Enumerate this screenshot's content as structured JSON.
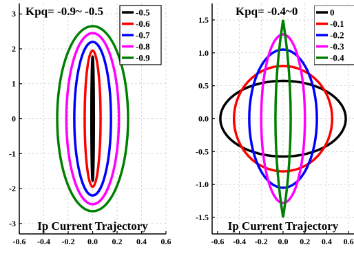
{
  "chart_data": [
    {
      "type": "line",
      "title": "Kpq= -0.9~ -0.5",
      "annotation": "Ip Current Trajectory",
      "xlim": [
        -0.6,
        0.6
      ],
      "ylim": [
        -3.3,
        3.3
      ],
      "xticks": [
        "-0.6",
        "-0.4",
        "-0.2",
        "0.0",
        "0.2",
        "0.4",
        "0.6"
      ],
      "yticks": [
        "3",
        "2",
        "1",
        "0",
        "-1",
        "-2",
        "-3"
      ],
      "grid": true,
      "legend_position": "top-right",
      "series": [
        {
          "name": "-0.5",
          "color": "#000000",
          "shape": "ellipse",
          "rx": 0.01,
          "ry": 1.78
        },
        {
          "name": "-0.6",
          "color": "#ff0000",
          "shape": "ellipse",
          "rx": 0.065,
          "ry": 1.95
        },
        {
          "name": "-0.7",
          "color": "#0000ff",
          "shape": "ellipse",
          "rx": 0.15,
          "ry": 2.2
        },
        {
          "name": "-0.8",
          "color": "#ff00ff",
          "shape": "ellipse",
          "rx": 0.215,
          "ry": 2.45
        },
        {
          "name": "-0.9",
          "color": "#008000",
          "shape": "ellipse",
          "rx": 0.29,
          "ry": 2.65
        }
      ]
    },
    {
      "type": "line",
      "title": "Kpq= -0.4~0",
      "annotation": "Ip Current Trajectory",
      "xlim": [
        -0.65,
        0.65
      ],
      "ylim": [
        -1.75,
        1.75
      ],
      "xticks": [
        "-0.6",
        "-0.4",
        "-0.2",
        "0.0",
        "0.2",
        "0.4",
        "0.6"
      ],
      "yticks": [
        "1.5",
        "1.0",
        "0.5",
        "0.0",
        "-0.5",
        "-1.0",
        "-1.5"
      ],
      "grid": true,
      "legend_position": "top-right",
      "series": [
        {
          "name": "0",
          "color": "#000000",
          "shape": "ellipse",
          "rx": 0.575,
          "ry": 0.575
        },
        {
          "name": "-0.1",
          "color": "#ff0000",
          "shape": "ellipse",
          "rx": 0.45,
          "ry": 0.8
        },
        {
          "name": "-0.2",
          "color": "#0000ff",
          "shape": "ellipse",
          "rx": 0.31,
          "ry": 1.05
        },
        {
          "name": "-0.3",
          "color": "#ff00ff",
          "shape": "ellipse",
          "rx": 0.2,
          "ry": 1.28
        },
        {
          "name": "-0.4",
          "color": "#008000",
          "shape": "lens",
          "rx": 0.07,
          "ry": 1.5
        }
      ]
    }
  ]
}
